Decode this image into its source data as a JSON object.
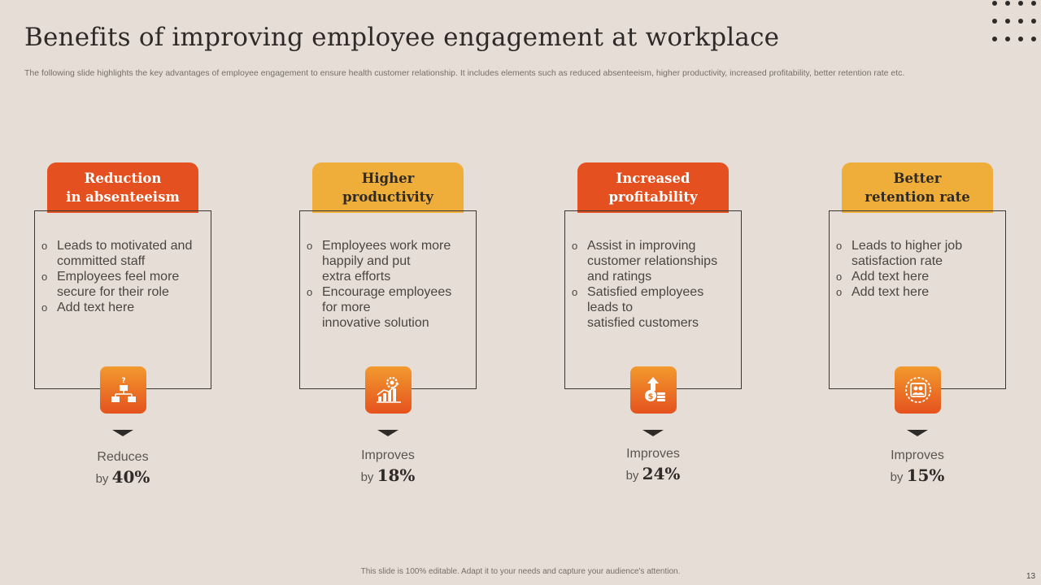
{
  "title": "Benefits of  improving employee engagement at workplace",
  "subtitle": "The following slide highlights the key advantages of employee engagement to ensure health customer relationship. It includes elements such as reduced absenteeism, higher productivity, increased profitability, better retention rate etc.",
  "cards": [
    {
      "header": "Reduction\nin absenteeism",
      "header_color": "#e4501f",
      "bullets": [
        "Leads to motivated and committed staff",
        "Employees feel more secure for their role",
        "Add text here"
      ],
      "icon": "org-chart-question-icon",
      "stat_label": "Reduces",
      "stat_prefix": "by",
      "stat_value": "40%"
    },
    {
      "header": "Higher\nproductivity",
      "header_color": "#efae3a",
      "bullets": [
        "Employees work more happily and put\nextra efforts",
        "Encourage employees for more\ninnovative solution"
      ],
      "icon": "growth-chart-gear-icon",
      "stat_label": "Improves",
      "stat_prefix": "by",
      "stat_value": "18%"
    },
    {
      "header": "Increased\nprofitability",
      "header_color": "#e4501f",
      "bullets": [
        "Assist in improving customer relationships and ratings",
        "Satisfied employees leads to\nsatisfied customers"
      ],
      "icon": "money-growth-arrow-icon",
      "stat_label": "Improves",
      "stat_prefix": "by",
      "stat_value": "24%"
    },
    {
      "header": "Better\nretention rate",
      "header_color": "#efae3a",
      "bullets": [
        "Leads to higher job satisfaction rate",
        "Add text here",
        "Add text here"
      ],
      "icon": "employee-retention-icon",
      "stat_label": "Improves",
      "stat_prefix": "by",
      "stat_value": "15%"
    }
  ],
  "footer": "This slide is 100% editable.  Adapt it to your needs and capture your audience's attention.",
  "page_number": "13",
  "colors": {
    "background": "#e6ddd6",
    "orange": "#e4501f",
    "yellow": "#efae3a",
    "dark": "#2e2a27"
  }
}
